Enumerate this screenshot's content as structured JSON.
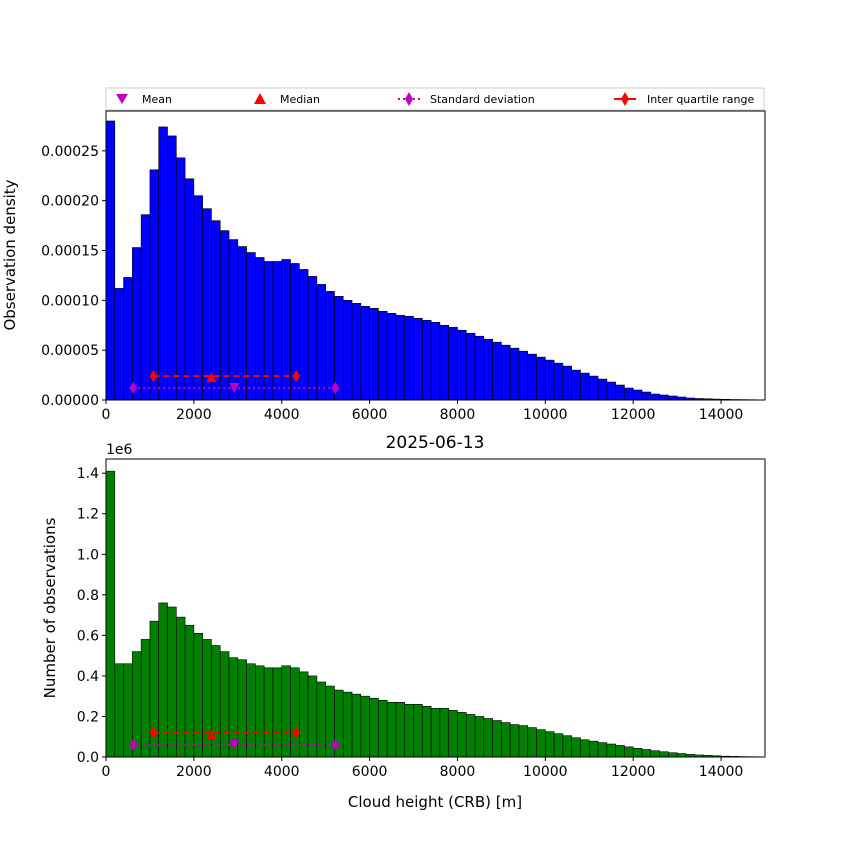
{
  "legend": {
    "items": [
      {
        "label": "Mean",
        "marker": "triangle-down",
        "color": "#bf00bf"
      },
      {
        "label": "Median",
        "marker": "triangle-up",
        "color": "#ff0000"
      },
      {
        "label": "Standard deviation",
        "marker": "diamond-dotted-line",
        "color": "#bf00bf"
      },
      {
        "label": "Inter quartile range",
        "marker": "diamond-solid-line",
        "color": "#ff0000"
      }
    ]
  },
  "chart_data": [
    {
      "type": "bar",
      "bar_color": "#0000ff",
      "title": "",
      "xlabel": "",
      "ylabel": "Observation density",
      "xlim": [
        0,
        15000
      ],
      "ylim": [
        0,
        0.00029
      ],
      "bin_width": 200,
      "bin_start": 0,
      "xticks": [
        0,
        2000,
        4000,
        6000,
        8000,
        10000,
        12000,
        14000
      ],
      "xtick_labels": [
        "0",
        "2000",
        "4000",
        "6000",
        "8000",
        "10000",
        "12000",
        "14000"
      ],
      "yticks": [
        0,
        5e-05,
        0.0001,
        0.00015,
        0.0002,
        0.00025
      ],
      "ytick_labels": [
        "0.00000",
        "0.00005",
        "0.00010",
        "0.00015",
        "0.00020",
        "0.00025"
      ],
      "values": [
        0.00028,
        0.000112,
        0.000123,
        0.000153,
        0.000186,
        0.000231,
        0.000274,
        0.000265,
        0.000243,
        0.000222,
        0.000205,
        0.000192,
        0.00018,
        0.00017,
        0.000161,
        0.000154,
        0.000148,
        0.000143,
        0.000139,
        0.000139,
        0.000141,
        0.000137,
        0.000131,
        0.000124,
        0.000116,
        0.000109,
        0.000104,
        0.0001,
        9.7e-05,
        9.4e-05,
        9.2e-05,
        8.9e-05,
        8.7e-05,
        8.5e-05,
        8.4e-05,
        8.2e-05,
        8e-05,
        7.8e-05,
        7.5e-05,
        7.3e-05,
        7e-05,
        6.7e-05,
        6.4e-05,
        6.1e-05,
        5.8e-05,
        5.5e-05,
        5.2e-05,
        4.9e-05,
        4.6e-05,
        4.3e-05,
        4e-05,
        3.7e-05,
        3.4e-05,
        3e-05,
        2.7e-05,
        2.4e-05,
        2.1e-05,
        1.8e-05,
        1.5e-05,
        1.2e-05,
        1e-05,
        8e-06,
        6e-06,
        5e-06,
        4e-06,
        3e-06,
        2e-06,
        1.5e-06,
        1.2e-06,
        9e-07,
        7e-07,
        5e-07,
        4e-07,
        3e-07,
        2e-07
      ],
      "stats": {
        "mean": {
          "x": 2920,
          "y": 1.2e-05
        },
        "median": {
          "x": 2400,
          "y": 2.3e-05
        },
        "std": {
          "x": [
            620,
            5220
          ],
          "y": 1.2e-05
        },
        "iqr": {
          "x": [
            1080,
            4330
          ],
          "y": 2.4e-05
        }
      }
    },
    {
      "type": "bar",
      "bar_color": "#008000",
      "title": "2025-06-13",
      "xlabel": "Cloud height (CRB) [m]",
      "ylabel": "Number of observations",
      "offset_text": "1e6",
      "xlim": [
        0,
        15000
      ],
      "ylim": [
        0,
        1.47
      ],
      "bin_width": 200,
      "bin_start": 0,
      "xticks": [
        0,
        2000,
        4000,
        6000,
        8000,
        10000,
        12000,
        14000
      ],
      "xtick_labels": [
        "0",
        "2000",
        "4000",
        "6000",
        "8000",
        "10000",
        "12000",
        "14000"
      ],
      "yticks": [
        0,
        0.2,
        0.4,
        0.6,
        0.8,
        1.0,
        1.2,
        1.4
      ],
      "ytick_labels": [
        "0.0",
        "0.2",
        "0.4",
        "0.6",
        "0.8",
        "1.0",
        "1.2",
        "1.4"
      ],
      "values": [
        1.41,
        0.46,
        0.46,
        0.52,
        0.58,
        0.67,
        0.76,
        0.74,
        0.69,
        0.65,
        0.61,
        0.58,
        0.55,
        0.52,
        0.49,
        0.48,
        0.46,
        0.45,
        0.44,
        0.44,
        0.45,
        0.44,
        0.42,
        0.4,
        0.37,
        0.35,
        0.33,
        0.32,
        0.31,
        0.3,
        0.29,
        0.28,
        0.27,
        0.27,
        0.26,
        0.26,
        0.25,
        0.24,
        0.24,
        0.23,
        0.22,
        0.21,
        0.2,
        0.19,
        0.18,
        0.17,
        0.16,
        0.155,
        0.145,
        0.135,
        0.125,
        0.115,
        0.105,
        0.095,
        0.085,
        0.078,
        0.071,
        0.064,
        0.057,
        0.05,
        0.043,
        0.037,
        0.031,
        0.026,
        0.021,
        0.017,
        0.013,
        0.01,
        0.008,
        0.006,
        0.004,
        0.003,
        0.002,
        0.0015,
        0.001
      ],
      "stats": {
        "mean": {
          "x": 2920,
          "y": 0.06
        },
        "median": {
          "x": 2400,
          "y": 0.11
        },
        "std": {
          "x": [
            620,
            5220
          ],
          "y": 0.06
        },
        "iqr": {
          "x": [
            1080,
            4330
          ],
          "y": 0.12
        }
      }
    }
  ]
}
